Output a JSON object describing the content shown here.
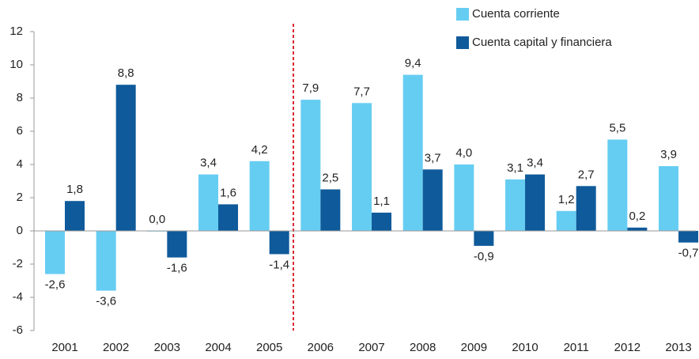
{
  "chart_data": {
    "type": "bar",
    "categories": [
      "2001",
      "2002",
      "2003",
      "2004",
      "2005",
      "2006",
      "2007",
      "2008",
      "2009",
      "2010",
      "2011",
      "2012",
      "2013"
    ],
    "series": [
      {
        "name": "Cuenta corriente",
        "color": "#66cdf2",
        "values": [
          -2.6,
          -3.6,
          0.0,
          3.4,
          4.2,
          7.9,
          7.7,
          9.4,
          4.0,
          3.1,
          1.2,
          5.5,
          3.9
        ],
        "value_labels": [
          "-2,6",
          "-3,6",
          "0,0",
          "3,4",
          "4,2",
          "7,9",
          "7,7",
          "9,4",
          "4,0",
          "3,1",
          "1,2",
          "5,5",
          "3,9"
        ]
      },
      {
        "name": "Cuenta capital y financiera",
        "color": "#0f5a9a",
        "values": [
          1.8,
          8.8,
          -1.6,
          1.6,
          -1.4,
          2.5,
          1.1,
          3.7,
          -0.9,
          3.4,
          2.7,
          0.2,
          -0.7
        ],
        "value_labels": [
          "1,8",
          "8,8",
          "-1,6",
          "1,6",
          "-1,4",
          "2,5",
          "1,1",
          "3,7",
          "-0,9",
          "3,4",
          "2,7",
          "0,2",
          "-0,7"
        ]
      }
    ],
    "ylim": [
      -6,
      12
    ],
    "yticks": [
      -6,
      -4,
      -2,
      0,
      2,
      4,
      6,
      8,
      10,
      12
    ]
  }
}
